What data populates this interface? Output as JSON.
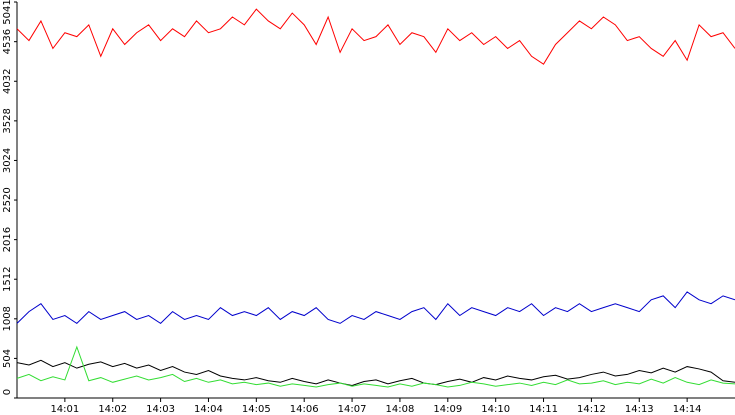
{
  "chart_data": {
    "type": "line",
    "x": [
      0,
      0.25,
      0.5,
      0.75,
      1,
      1.25,
      1.5,
      1.75,
      2,
      2.25,
      2.5,
      2.75,
      3,
      3.25,
      3.5,
      3.75,
      4,
      4.25,
      4.5,
      4.75,
      5,
      5.25,
      5.5,
      5.75,
      6,
      6.25,
      6.5,
      6.75,
      7,
      7.25,
      7.5,
      7.75,
      8,
      8.25,
      8.5,
      8.75,
      9,
      9.25,
      9.5,
      9.75,
      10,
      10.25,
      10.5,
      10.75,
      11,
      11.25,
      11.5,
      11.75,
      12,
      12.25,
      12.5,
      12.75,
      13,
      13.25,
      13.5,
      13.75,
      14,
      14.25,
      14.5,
      14.75,
      15
    ],
    "xlim": [
      0,
      15
    ],
    "xticks": [
      {
        "value": 1,
        "label": "14:01"
      },
      {
        "value": 2,
        "label": "14:02"
      },
      {
        "value": 3,
        "label": "14:03"
      },
      {
        "value": 4,
        "label": "14:04"
      },
      {
        "value": 5,
        "label": "14:05"
      },
      {
        "value": 6,
        "label": "14:06"
      },
      {
        "value": 7,
        "label": "14:07"
      },
      {
        "value": 8,
        "label": "14:08"
      },
      {
        "value": 9,
        "label": "14:09"
      },
      {
        "value": 10,
        "label": "14:10"
      },
      {
        "value": 11,
        "label": "14:11"
      },
      {
        "value": 12,
        "label": "14:12"
      },
      {
        "value": 13,
        "label": "14:13"
      },
      {
        "value": 14,
        "label": "14:14"
      }
    ],
    "ylim": [
      0,
      5041
    ],
    "yticks": [
      0,
      504,
      1008,
      1512,
      2016,
      2520,
      3024,
      3528,
      4032,
      4536,
      5041
    ],
    "series": [
      {
        "color": "#ff0000",
        "values": [
          4700,
          4550,
          4800,
          4450,
          4650,
          4600,
          4750,
          4350,
          4700,
          4500,
          4650,
          4750,
          4550,
          4700,
          4600,
          4800,
          4650,
          4700,
          4850,
          4750,
          4950,
          4800,
          4700,
          4900,
          4750,
          4500,
          4850,
          4400,
          4700,
          4550,
          4600,
          4750,
          4500,
          4650,
          4600,
          4400,
          4700,
          4550,
          4650,
          4500,
          4600,
          4450,
          4550,
          4350,
          4250,
          4500,
          4650,
          4800,
          4700,
          4850,
          4750,
          4550,
          4600,
          4450,
          4350,
          4550,
          4300,
          4750,
          4600,
          4650,
          4450
        ]
      },
      {
        "color": "#0000cc",
        "values": [
          950,
          1100,
          1200,
          1000,
          1050,
          950,
          1100,
          1000,
          1050,
          1100,
          1000,
          1050,
          950,
          1100,
          1000,
          1050,
          1000,
          1150,
          1050,
          1100,
          1050,
          1150,
          1000,
          1100,
          1050,
          1150,
          1000,
          950,
          1050,
          1000,
          1100,
          1050,
          1000,
          1100,
          1150,
          1000,
          1200,
          1050,
          1150,
          1100,
          1050,
          1150,
          1100,
          1200,
          1050,
          1150,
          1100,
          1200,
          1100,
          1150,
          1200,
          1150,
          1100,
          1250,
          1300,
          1150,
          1350,
          1250,
          1200,
          1300,
          1250
        ]
      },
      {
        "color": "#000000",
        "values": [
          450,
          420,
          480,
          400,
          450,
          380,
          430,
          460,
          400,
          440,
          380,
          420,
          350,
          400,
          330,
          300,
          350,
          280,
          250,
          230,
          260,
          220,
          200,
          250,
          210,
          180,
          230,
          190,
          160,
          210,
          230,
          180,
          220,
          250,
          190,
          170,
          210,
          240,
          200,
          260,
          230,
          280,
          250,
          230,
          270,
          290,
          240,
          260,
          300,
          330,
          280,
          300,
          350,
          320,
          380,
          330,
          400,
          370,
          330,
          220,
          200
        ]
      },
      {
        "color": "#33dd33",
        "values": [
          250,
          300,
          220,
          270,
          230,
          650,
          220,
          260,
          200,
          240,
          280,
          230,
          260,
          300,
          210,
          250,
          200,
          230,
          180,
          200,
          170,
          190,
          150,
          180,
          160,
          140,
          170,
          190,
          150,
          180,
          160,
          140,
          180,
          150,
          190,
          170,
          140,
          160,
          200,
          180,
          150,
          170,
          190,
          160,
          200,
          170,
          230,
          180,
          190,
          220,
          170,
          200,
          180,
          240,
          190,
          260,
          200,
          170,
          230,
          190,
          180
        ]
      }
    ]
  }
}
